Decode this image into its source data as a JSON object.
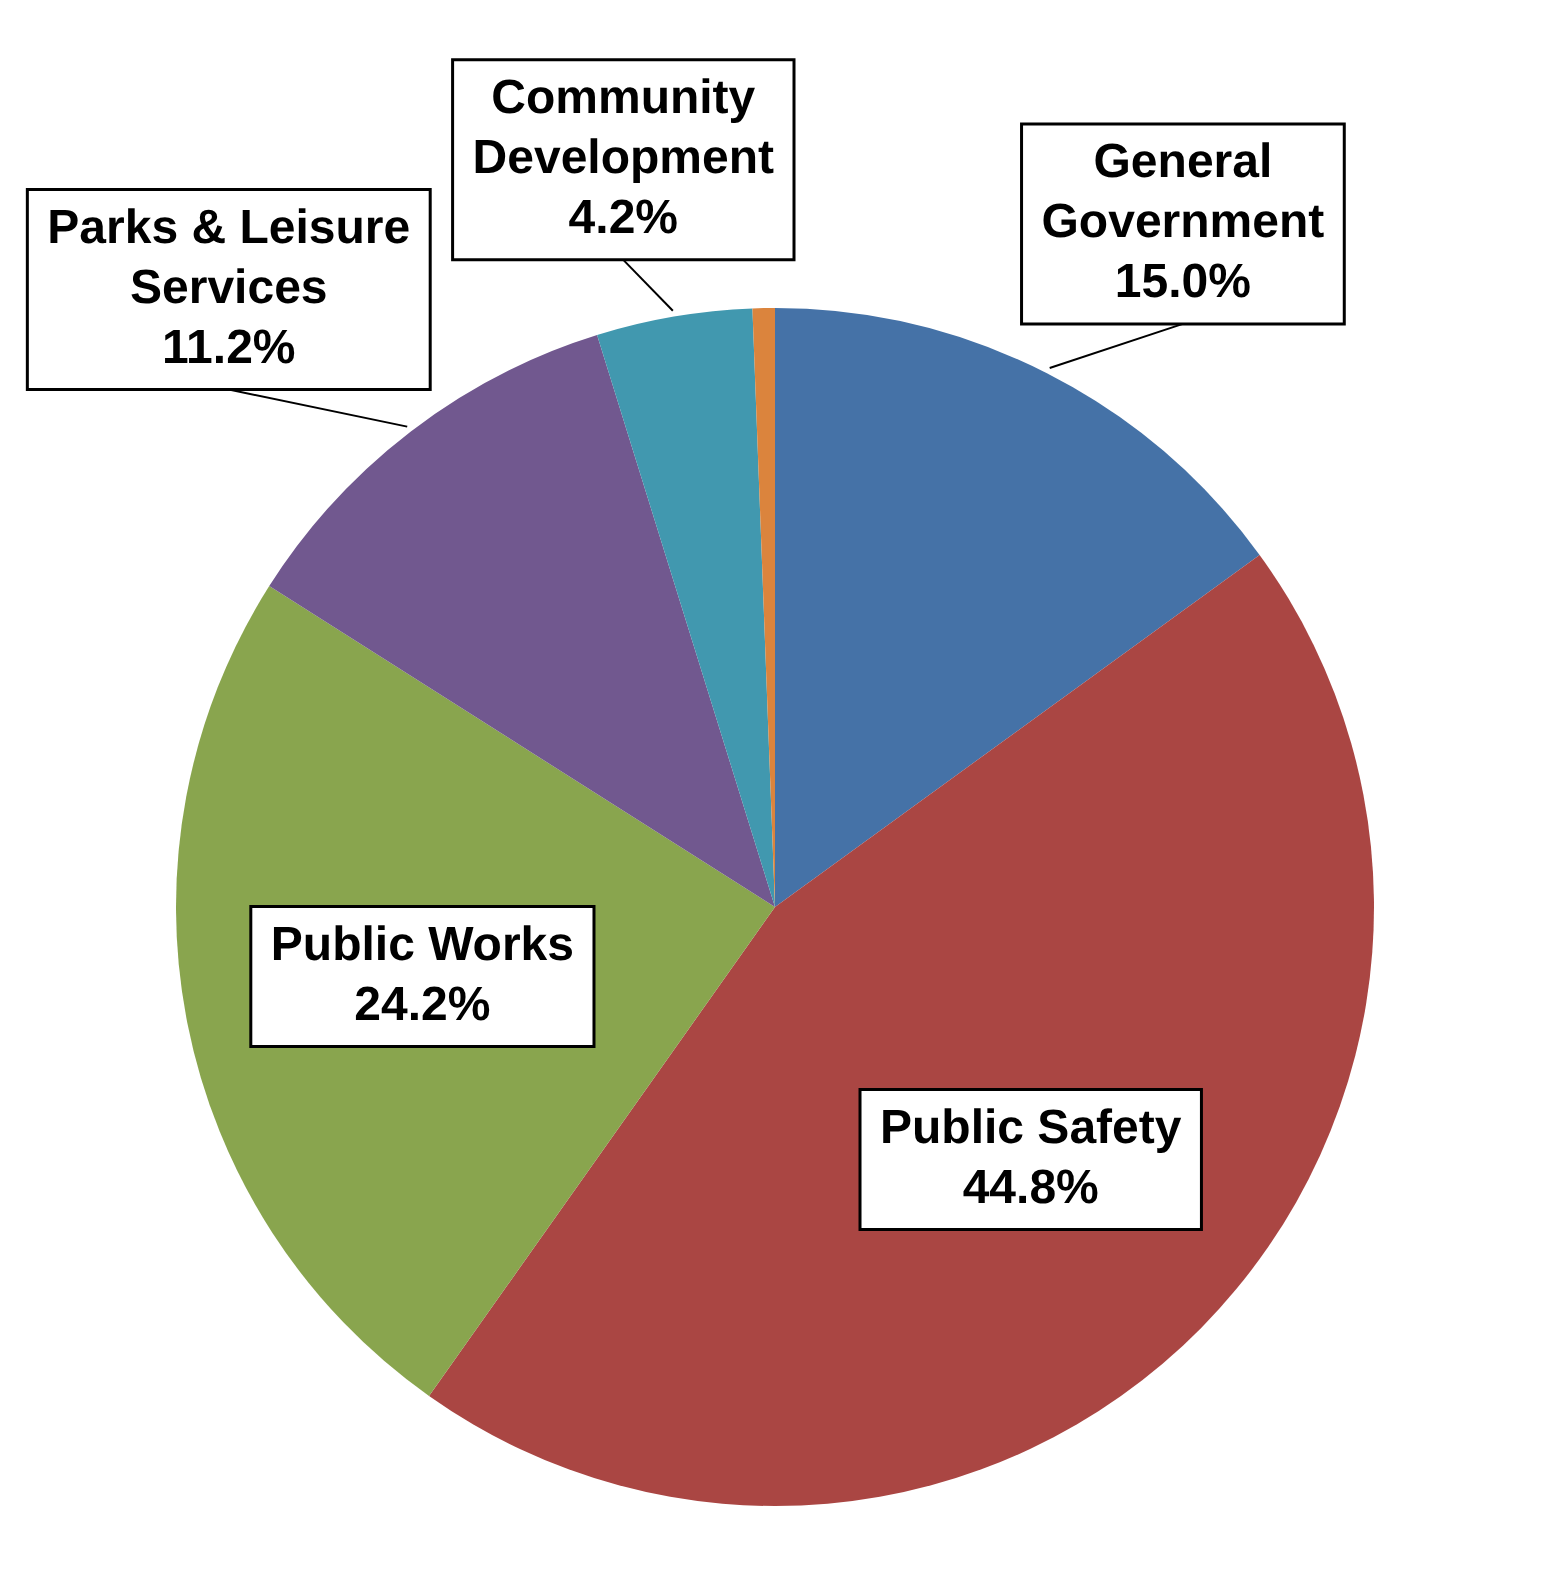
{
  "chart_data": {
    "type": "pie",
    "categories": [
      "General Government",
      "Public Safety",
      "Public Works",
      "Parks & Leisure Services",
      "Community Development",
      null
    ],
    "values": [
      15.0,
      44.8,
      24.2,
      11.2,
      4.2,
      0.6
    ],
    "colors": [
      "#4572a7",
      "#aa4643",
      "#89a54e",
      "#71588f",
      "#4198af",
      "#db843d"
    ],
    "value_labels": [
      "15.0%",
      "44.8%",
      "24.2%",
      "11.2%",
      "4.2%",
      null
    ],
    "legend": false
  }
}
